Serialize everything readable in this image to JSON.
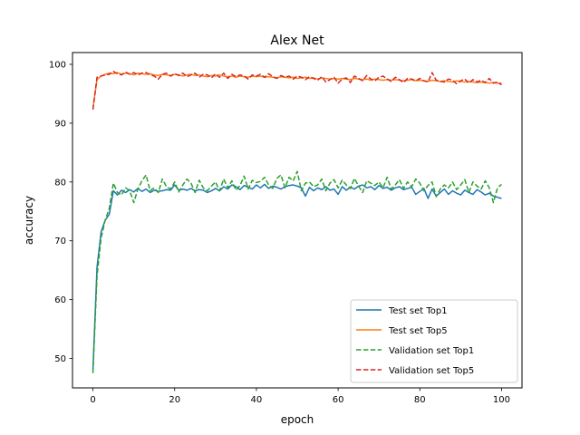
{
  "chart_data": {
    "type": "line",
    "title": "Alex Net",
    "xlabel": "epoch",
    "ylabel": "accuracy",
    "xlim": [
      -5,
      105
    ],
    "ylim": [
      45,
      102
    ],
    "xticks": [
      0,
      20,
      40,
      60,
      80,
      100
    ],
    "yticks": [
      50,
      60,
      70,
      80,
      90,
      100
    ],
    "grid": false,
    "legend_position": "lower-right",
    "x": [
      0,
      1,
      2,
      3,
      4,
      5,
      6,
      7,
      8,
      9,
      10,
      11,
      12,
      13,
      14,
      15,
      16,
      17,
      18,
      19,
      20,
      21,
      22,
      23,
      24,
      25,
      26,
      27,
      28,
      29,
      30,
      31,
      32,
      33,
      34,
      35,
      36,
      37,
      38,
      39,
      40,
      41,
      42,
      43,
      44,
      45,
      46,
      47,
      48,
      49,
      50,
      51,
      52,
      53,
      54,
      55,
      56,
      57,
      58,
      59,
      60,
      61,
      62,
      63,
      64,
      65,
      66,
      67,
      68,
      69,
      70,
      71,
      72,
      73,
      74,
      75,
      76,
      77,
      78,
      79,
      80,
      81,
      82,
      83,
      84,
      85,
      86,
      87,
      88,
      89,
      90,
      91,
      92,
      93,
      94,
      95,
      96,
      97,
      98,
      99,
      100
    ],
    "series": [
      {
        "name": "Test set Top1",
        "color": "#1f77b4",
        "dash": "solid",
        "values": [
          48.0,
          65.5,
          71.5,
          73.5,
          74.5,
          78.5,
          77.8,
          78.6,
          78.2,
          78.7,
          78.3,
          78.9,
          78.4,
          78.8,
          78.2,
          78.6,
          78.4,
          78.5,
          78.7,
          78.6,
          79.5,
          78.6,
          78.8,
          78.6,
          78.9,
          78.5,
          78.7,
          78.6,
          78.2,
          78.5,
          78.9,
          78.5,
          79.2,
          78.8,
          79.5,
          79.2,
          78.7,
          79.4,
          79.1,
          78.8,
          79.5,
          79.0,
          79.6,
          78.9,
          79.3,
          79.1,
          78.8,
          79.2,
          79.4,
          79.5,
          79.3,
          79.0,
          77.6,
          79.1,
          78.5,
          79.0,
          78.7,
          79.2,
          78.6,
          78.8,
          77.9,
          79.2,
          78.6,
          79.1,
          78.8,
          79.3,
          79.5,
          79.0,
          79.2,
          78.7,
          79.4,
          78.9,
          79.1,
          78.6,
          79.0,
          79.2,
          78.7,
          78.9,
          79.1,
          77.9,
          78.4,
          78.9,
          77.2,
          78.8,
          77.6,
          78.2,
          78.8,
          77.9,
          78.5,
          78.1,
          77.8,
          78.6,
          78.2,
          77.9,
          78.7,
          78.3,
          77.8,
          78.1,
          77.6,
          77.4,
          77.2
        ]
      },
      {
        "name": "Test set Top5",
        "color": "#ff7f0e",
        "dash": "solid",
        "values": [
          92.5,
          97.4,
          98.0,
          98.3,
          98.5,
          98.4,
          98.6,
          98.3,
          98.5,
          98.4,
          98.2,
          98.5,
          98.4,
          98.3,
          98.4,
          98.2,
          98.1,
          98.3,
          98.2,
          98.1,
          98.3,
          98.2,
          98.0,
          98.2,
          98.3,
          98.1,
          98.2,
          98.0,
          97.9,
          98.1,
          98.0,
          98.2,
          98.0,
          97.9,
          98.0,
          97.8,
          98.0,
          97.9,
          97.8,
          98.0,
          97.9,
          98.0,
          97.8,
          97.9,
          97.8,
          97.7,
          97.9,
          97.8,
          97.7,
          97.8,
          97.6,
          97.7,
          97.8,
          97.6,
          97.7,
          97.5,
          97.7,
          97.6,
          97.5,
          97.6,
          97.5,
          97.6,
          97.5,
          97.4,
          97.6,
          97.5,
          97.4,
          97.5,
          97.3,
          97.5,
          97.4,
          97.3,
          97.4,
          97.3,
          97.4,
          97.3,
          97.2,
          97.3,
          97.4,
          97.2,
          97.3,
          97.2,
          97.1,
          97.3,
          97.2,
          97.1,
          97.2,
          97.1,
          97.0,
          97.2,
          97.1,
          97.0,
          97.1,
          97.0,
          96.9,
          97.0,
          96.9,
          96.8,
          96.9,
          96.8,
          96.8
        ]
      },
      {
        "name": "Validation set Top1",
        "color": "#2ca02c",
        "dash": "dashed",
        "values": [
          47.5,
          64.0,
          70.5,
          73.5,
          75.5,
          79.8,
          78.2,
          77.8,
          79.0,
          78.5,
          76.5,
          78.8,
          80.2,
          81.2,
          78.5,
          79.0,
          78.2,
          80.5,
          79.2,
          78.8,
          80.0,
          78.3,
          79.5,
          80.5,
          79.8,
          78.2,
          80.3,
          79.0,
          78.5,
          79.3,
          80.0,
          78.5,
          80.5,
          79.0,
          80.2,
          78.6,
          79.4,
          81.0,
          78.8,
          80.3,
          79.9,
          80.1,
          80.8,
          79.5,
          78.9,
          80.6,
          81.2,
          79.0,
          80.8,
          80.2,
          81.8,
          78.5,
          79.8,
          80.0,
          79.2,
          79.5,
          80.5,
          78.5,
          79.8,
          80.4,
          79.0,
          80.3,
          79.5,
          78.9,
          80.6,
          79.3,
          78.2,
          80.2,
          79.8,
          79.4,
          80.0,
          79.0,
          80.8,
          78.8,
          79.5,
          80.4,
          78.9,
          80.0,
          79.2,
          80.5,
          79.8,
          78.5,
          79.4,
          80.0,
          77.5,
          78.8,
          79.5,
          79.0,
          80.0,
          78.7,
          79.5,
          80.4,
          78.2,
          80.0,
          79.3,
          78.8,
          80.2,
          79.0,
          76.5,
          79.0,
          79.6
        ]
      },
      {
        "name": "Validation set Top5",
        "color": "#d62728",
        "dash": "dashed",
        "values": [
          92.3,
          97.8,
          98.0,
          98.2,
          98.3,
          98.8,
          98.4,
          98.2,
          98.7,
          98.3,
          98.6,
          98.2,
          98.5,
          98.6,
          98.2,
          98.0,
          97.5,
          98.3,
          98.5,
          98.0,
          98.4,
          98.1,
          98.5,
          97.9,
          98.2,
          98.5,
          97.8,
          98.3,
          98.2,
          97.7,
          98.4,
          97.8,
          98.5,
          97.6,
          98.3,
          97.9,
          98.2,
          98.0,
          97.5,
          98.2,
          98.0,
          98.3,
          97.8,
          98.4,
          97.9,
          97.6,
          98.1,
          97.8,
          98.0,
          97.5,
          98.0,
          97.8,
          97.4,
          97.9,
          97.6,
          97.3,
          97.9,
          97.0,
          97.4,
          97.8,
          96.8,
          97.5,
          97.7,
          96.9,
          98.0,
          97.6,
          97.2,
          98.1,
          97.5,
          97.2,
          97.8,
          98.0,
          97.5,
          97.1,
          97.8,
          97.4,
          96.9,
          97.6,
          97.5,
          97.2,
          97.6,
          97.2,
          97.0,
          98.6,
          97.3,
          97.1,
          97.0,
          97.5,
          97.3,
          96.7,
          97.2,
          97.5,
          96.8,
          97.4,
          97.0,
          97.3,
          96.9,
          97.6,
          96.8,
          97.0,
          96.5
        ]
      }
    ]
  }
}
